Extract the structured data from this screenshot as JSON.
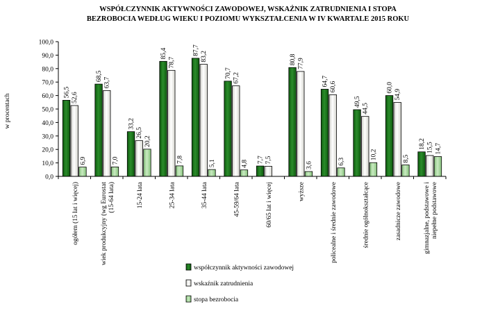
{
  "chart_data": {
    "type": "bar",
    "title_lines": [
      "WSPÓŁCZYNNIK  AKTYWNOŚCI  ZAWODOWEJ,  WSKAŹNIK  ZATRUDNIENIA  I  STOPA",
      "BEZROBOCIA  WEDŁUG  WIEKU   I POZIOMU  WYKSZTAŁCENIA  W IV KWARTALE 2015 ROKU"
    ],
    "ylabel": "w procentach",
    "xlabel": "",
    "ylim": [
      0,
      100
    ],
    "yticks": [
      "0,0",
      "10,0",
      "20,0",
      "30,0",
      "40,0",
      "50,0",
      "60,0",
      "70,0",
      "80,0",
      "90,0",
      "100,0"
    ],
    "grid": false,
    "legend_position": "bottom-center",
    "categories": [
      [
        "ogółem (15 lat i więcej)"
      ],
      [
        "wiek produkcyjny (wg Eurostat",
        "(15-64 lata)"
      ],
      [
        "15-24 lata"
      ],
      [
        "25-34 lata"
      ],
      [
        "35-44 lata"
      ],
      [
        "45-59/64 lata"
      ],
      [
        "60/65 lat i więcej"
      ],
      [
        "wyższe"
      ],
      [
        "policealne i średnie zawodowe"
      ],
      [
        "średnie ogólnokształcące"
      ],
      [
        "zasadnicze zawodowe"
      ],
      [
        "gimnazjalne, podstawowe i",
        "niepełne podstawowe"
      ]
    ],
    "series": [
      {
        "name": "współczynnik aktywności zawodowej",
        "color": "#1e7a1e",
        "values": [
          56.5,
          68.5,
          33.2,
          85.4,
          87.7,
          70.7,
          7.7,
          80.8,
          64.7,
          49.5,
          60.0,
          18.2
        ],
        "labels": [
          "56,5",
          "68,5",
          "33,2",
          "85,4",
          "87,7",
          "70,7",
          "7,7",
          "80,8",
          "64,7",
          "49,5",
          "60,0",
          "18,2"
        ]
      },
      {
        "name": "wskaźnik zatrudnienia",
        "color": "#f0f0ec",
        "values": [
          52.6,
          63.7,
          26.5,
          78.7,
          83.2,
          67.2,
          7.5,
          77.9,
          60.6,
          44.5,
          54.9,
          15.5
        ],
        "labels": [
          "52,6",
          "63,7",
          "26,5",
          "78,7",
          "83,2",
          "67,2",
          "7,5",
          "77,9",
          "60,6",
          "44,5",
          "54,9",
          "15,5"
        ]
      },
      {
        "name": "stopa bezrobocia",
        "color": "#a9d9a0",
        "values": [
          6.9,
          7.0,
          20.2,
          7.8,
          5.1,
          4.8,
          null,
          3.6,
          6.3,
          10.2,
          8.5,
          14.7
        ],
        "labels": [
          "6,9",
          "7,0",
          "20,2",
          "7,8",
          "5,1",
          "4,8",
          "",
          "3,6",
          "6,3",
          "10,2",
          "8,5",
          "14,7"
        ]
      }
    ]
  }
}
